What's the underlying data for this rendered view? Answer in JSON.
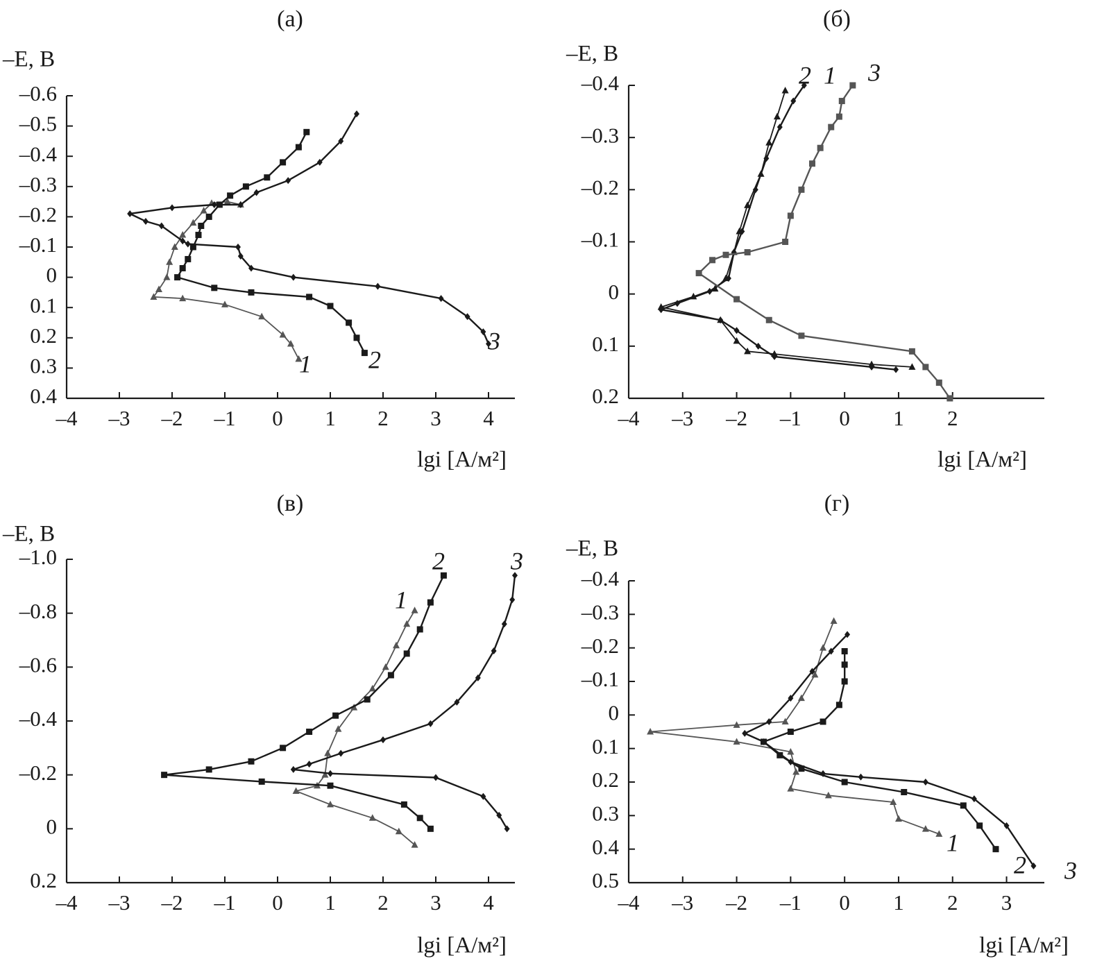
{
  "chart_data": [
    {
      "type": "line",
      "title": "(а)",
      "ylabel": "–E, В",
      "xlabel": "lgi [А/м²]",
      "y_tick_labels": [
        "–0.6",
        "–0.5",
        "–0.4",
        "–0.3",
        "–0.2",
        "–0.1",
        "0",
        "0.1",
        "0.2",
        "0.3",
        "0.4"
      ],
      "x_tick_labels": [
        "–4",
        "–3",
        "–2",
        "–1",
        "0",
        "1",
        "2",
        "3",
        "4"
      ],
      "xlim": [
        -4,
        4.5
      ],
      "ylim": [
        -0.6,
        0.4
      ],
      "series": [
        {
          "label": "1",
          "color": "#555555",
          "marker": "triangle",
          "points": [
            [
              0.4,
              0.27
            ],
            [
              0.25,
              0.22
            ],
            [
              0.1,
              0.19
            ],
            [
              -0.3,
              0.13
            ],
            [
              -1.0,
              0.09
            ],
            [
              -1.8,
              0.07
            ],
            [
              -2.35,
              0.065
            ],
            [
              -2.25,
              0.04
            ],
            [
              -2.1,
              0.0
            ],
            [
              -2.05,
              -0.05
            ],
            [
              -1.95,
              -0.1
            ],
            [
              -1.8,
              -0.14
            ],
            [
              -1.6,
              -0.18
            ],
            [
              -1.4,
              -0.22
            ],
            [
              -1.25,
              -0.245
            ],
            [
              -0.95,
              -0.25
            ],
            [
              -0.7,
              -0.24
            ]
          ]
        },
        {
          "label": "2",
          "color": "#1a1a1a",
          "marker": "square",
          "points": [
            [
              1.65,
              0.25
            ],
            [
              1.5,
              0.2
            ],
            [
              1.35,
              0.15
            ],
            [
              1.0,
              0.095
            ],
            [
              0.6,
              0.065
            ],
            [
              -0.5,
              0.05
            ],
            [
              -1.2,
              0.035
            ],
            [
              -1.9,
              0.0
            ],
            [
              -1.8,
              -0.03
            ],
            [
              -1.7,
              -0.06
            ],
            [
              -1.6,
              -0.1
            ],
            [
              -1.5,
              -0.14
            ],
            [
              -1.45,
              -0.17
            ],
            [
              -1.3,
              -0.2
            ],
            [
              -1.1,
              -0.24
            ],
            [
              -0.9,
              -0.27
            ],
            [
              -0.6,
              -0.3
            ],
            [
              -0.2,
              -0.33
            ],
            [
              0.1,
              -0.38
            ],
            [
              0.4,
              -0.43
            ],
            [
              0.55,
              -0.48
            ]
          ]
        },
        {
          "label": "3",
          "color": "#1a1a1a",
          "marker": "diamond",
          "points": [
            [
              4.0,
              0.22
            ],
            [
              3.9,
              0.18
            ],
            [
              3.6,
              0.13
            ],
            [
              3.1,
              0.07
            ],
            [
              1.9,
              0.03
            ],
            [
              0.3,
              0.0
            ],
            [
              -0.5,
              -0.03
            ],
            [
              -0.7,
              -0.07
            ],
            [
              -0.75,
              -0.1
            ],
            [
              -1.7,
              -0.11
            ],
            [
              -1.8,
              -0.12
            ],
            [
              -2.2,
              -0.17
            ],
            [
              -2.5,
              -0.185
            ],
            [
              -2.8,
              -0.21
            ],
            [
              -2.0,
              -0.23
            ],
            [
              -1.2,
              -0.24
            ],
            [
              -0.7,
              -0.24
            ],
            [
              -0.4,
              -0.28
            ],
            [
              0.2,
              -0.32
            ],
            [
              0.8,
              -0.38
            ],
            [
              1.2,
              -0.45
            ],
            [
              1.5,
              -0.54
            ]
          ]
        }
      ]
    },
    {
      "type": "line",
      "title": "(б)",
      "ylabel": "–E, В",
      "xlabel": "lgi [А/м²]",
      "y_tick_labels": [
        "–0.4",
        "–0.3",
        "–0.2",
        "–0.1",
        "0",
        "0.1",
        "0.2"
      ],
      "x_tick_labels": [
        "–4",
        "–3",
        "–2",
        "–1",
        "0",
        "1",
        "2"
      ],
      "xlim": [
        -4,
        3.7
      ],
      "ylim": [
        -0.4,
        0.2
      ],
      "series": [
        {
          "label": "2",
          "color": "#1a1a1a",
          "marker": "triangle",
          "points": [
            [
              1.25,
              0.14
            ],
            [
              0.5,
              0.135
            ],
            [
              -1.3,
              0.115
            ],
            [
              -1.8,
              0.11
            ],
            [
              -2.0,
              0.09
            ],
            [
              -2.3,
              0.05
            ],
            [
              -3.4,
              0.025
            ],
            [
              -2.8,
              0.005
            ],
            [
              -2.4,
              -0.01
            ],
            [
              -2.2,
              -0.03
            ],
            [
              -2.05,
              -0.08
            ],
            [
              -1.95,
              -0.12
            ],
            [
              -1.8,
              -0.17
            ],
            [
              -1.55,
              -0.23
            ],
            [
              -1.4,
              -0.29
            ],
            [
              -1.25,
              -0.34
            ],
            [
              -1.1,
              -0.39
            ]
          ]
        },
        {
          "label": "1",
          "color": "#1a1a1a",
          "marker": "diamond",
          "points": [
            [
              0.95,
              0.145
            ],
            [
              0.5,
              0.14
            ],
            [
              -1.3,
              0.12
            ],
            [
              -1.6,
              0.1
            ],
            [
              -2.0,
              0.07
            ],
            [
              -2.3,
              0.05
            ],
            [
              -3.4,
              0.03
            ],
            [
              -3.1,
              0.018
            ],
            [
              -2.5,
              -0.005
            ],
            [
              -2.15,
              -0.03
            ],
            [
              -2.05,
              -0.08
            ],
            [
              -1.9,
              -0.12
            ],
            [
              -1.65,
              -0.2
            ],
            [
              -1.45,
              -0.26
            ],
            [
              -1.2,
              -0.32
            ],
            [
              -0.95,
              -0.37
            ],
            [
              -0.75,
              -0.4
            ]
          ]
        },
        {
          "label": "3",
          "color": "#555555",
          "marker": "square",
          "points": [
            [
              1.95,
              0.2
            ],
            [
              1.75,
              0.17
            ],
            [
              1.5,
              0.14
            ],
            [
              1.25,
              0.11
            ],
            [
              -0.8,
              0.08
            ],
            [
              -1.4,
              0.05
            ],
            [
              -2.0,
              0.01
            ],
            [
              -2.7,
              -0.04
            ],
            [
              -2.45,
              -0.065
            ],
            [
              -2.2,
              -0.075
            ],
            [
              -1.8,
              -0.08
            ],
            [
              -1.1,
              -0.1
            ],
            [
              -1.0,
              -0.15
            ],
            [
              -0.8,
              -0.2
            ],
            [
              -0.6,
              -0.25
            ],
            [
              -0.45,
              -0.28
            ],
            [
              -0.25,
              -0.32
            ],
            [
              -0.1,
              -0.34
            ],
            [
              -0.05,
              -0.37
            ],
            [
              0.15,
              -0.4
            ]
          ]
        }
      ]
    },
    {
      "type": "line",
      "title": "(в)",
      "ylabel": "–E, В",
      "xlabel": "lgi [А/м²]",
      "y_tick_labels": [
        "–1.0",
        "–0.8",
        "–0.6",
        "–0.4",
        "–0.2",
        "0",
        "0.2"
      ],
      "x_tick_labels": [
        "–4",
        "–3",
        "–2",
        "–1",
        "0",
        "1",
        "2",
        "3",
        "4"
      ],
      "xlim": [
        -4,
        4.5
      ],
      "ylim": [
        -1.0,
        0.2
      ],
      "series": [
        {
          "label": "1",
          "color": "#555555",
          "marker": "triangle",
          "points": [
            [
              2.6,
              0.06
            ],
            [
              2.3,
              0.01
            ],
            [
              1.8,
              -0.04
            ],
            [
              1.0,
              -0.09
            ],
            [
              0.35,
              -0.14
            ],
            [
              0.75,
              -0.16
            ],
            [
              0.9,
              -0.2
            ],
            [
              0.95,
              -0.28
            ],
            [
              1.15,
              -0.37
            ],
            [
              1.45,
              -0.45
            ],
            [
              1.8,
              -0.52
            ],
            [
              2.05,
              -0.6
            ],
            [
              2.25,
              -0.68
            ],
            [
              2.45,
              -0.76
            ],
            [
              2.6,
              -0.81
            ]
          ]
        },
        {
          "label": "2",
          "color": "#1a1a1a",
          "marker": "square",
          "points": [
            [
              2.9,
              0.0
            ],
            [
              2.7,
              -0.04
            ],
            [
              2.4,
              -0.09
            ],
            [
              1.0,
              -0.16
            ],
            [
              -0.3,
              -0.175
            ],
            [
              -2.15,
              -0.2
            ],
            [
              -1.3,
              -0.22
            ],
            [
              -0.5,
              -0.25
            ],
            [
              0.1,
              -0.3
            ],
            [
              0.6,
              -0.36
            ],
            [
              1.1,
              -0.42
            ],
            [
              1.7,
              -0.48
            ],
            [
              2.15,
              -0.57
            ],
            [
              2.45,
              -0.65
            ],
            [
              2.7,
              -0.74
            ],
            [
              2.9,
              -0.84
            ],
            [
              3.15,
              -0.94
            ]
          ]
        },
        {
          "label": "3",
          "color": "#1a1a1a",
          "marker": "diamond",
          "points": [
            [
              4.35,
              0.0
            ],
            [
              4.2,
              -0.05
            ],
            [
              3.9,
              -0.12
            ],
            [
              3.0,
              -0.19
            ],
            [
              1.0,
              -0.205
            ],
            [
              0.3,
              -0.22
            ],
            [
              0.6,
              -0.24
            ],
            [
              1.2,
              -0.28
            ],
            [
              2.0,
              -0.33
            ],
            [
              2.9,
              -0.39
            ],
            [
              3.4,
              -0.47
            ],
            [
              3.8,
              -0.56
            ],
            [
              4.1,
              -0.66
            ],
            [
              4.3,
              -0.76
            ],
            [
              4.45,
              -0.85
            ],
            [
              4.5,
              -0.94
            ]
          ]
        }
      ]
    },
    {
      "type": "line",
      "title": "(г)",
      "ylabel": "–E, В",
      "xlabel": "lgi [А/м²]",
      "y_tick_labels": [
        "–0.4",
        "–0.3",
        "–0.2",
        "–0.1",
        "0",
        "0.1",
        "0.2",
        "0.3",
        "0.4",
        "0.5"
      ],
      "x_tick_labels": [
        "–4",
        "–3",
        "–2",
        "–1",
        "0",
        "1",
        "2",
        "3"
      ],
      "xlim": [
        -4,
        3.7
      ],
      "ylim": [
        -0.4,
        0.5
      ],
      "series": [
        {
          "label": "1",
          "color": "#555555",
          "marker": "triangle",
          "points": [
            [
              1.75,
              0.355
            ],
            [
              1.5,
              0.34
            ],
            [
              1.0,
              0.31
            ],
            [
              0.9,
              0.26
            ],
            [
              -0.3,
              0.24
            ],
            [
              -1.0,
              0.22
            ],
            [
              -0.9,
              0.17
            ],
            [
              -1.0,
              0.11
            ],
            [
              -2.0,
              0.08
            ],
            [
              -3.6,
              0.05
            ],
            [
              -2.0,
              0.03
            ],
            [
              -1.1,
              0.02
            ],
            [
              -0.8,
              -0.05
            ],
            [
              -0.55,
              -0.12
            ],
            [
              -0.4,
              -0.2
            ],
            [
              -0.2,
              -0.28
            ]
          ]
        },
        {
          "label": "2",
          "color": "#1a1a1a",
          "marker": "square",
          "points": [
            [
              2.8,
              0.4
            ],
            [
              2.5,
              0.33
            ],
            [
              2.2,
              0.27
            ],
            [
              1.1,
              0.23
            ],
            [
              0.0,
              0.2
            ],
            [
              -0.8,
              0.16
            ],
            [
              -1.2,
              0.12
            ],
            [
              -1.5,
              0.08
            ],
            [
              -1.0,
              0.05
            ],
            [
              -0.4,
              0.02
            ],
            [
              -0.1,
              -0.03
            ],
            [
              0.0,
              -0.1
            ],
            [
              0.0,
              -0.15
            ],
            [
              0.0,
              -0.19
            ]
          ]
        },
        {
          "label": "3",
          "color": "#1a1a1a",
          "marker": "diamond",
          "points": [
            [
              3.5,
              0.45
            ],
            [
              3.0,
              0.33
            ],
            [
              2.4,
              0.25
            ],
            [
              1.5,
              0.2
            ],
            [
              0.3,
              0.185
            ],
            [
              -0.4,
              0.175
            ],
            [
              -1.0,
              0.14
            ],
            [
              -1.5,
              0.08
            ],
            [
              -1.85,
              0.055
            ],
            [
              -1.4,
              0.02
            ],
            [
              -1.0,
              -0.05
            ],
            [
              -0.6,
              -0.13
            ],
            [
              -0.25,
              -0.19
            ],
            [
              0.05,
              -0.24
            ]
          ]
        }
      ]
    }
  ]
}
